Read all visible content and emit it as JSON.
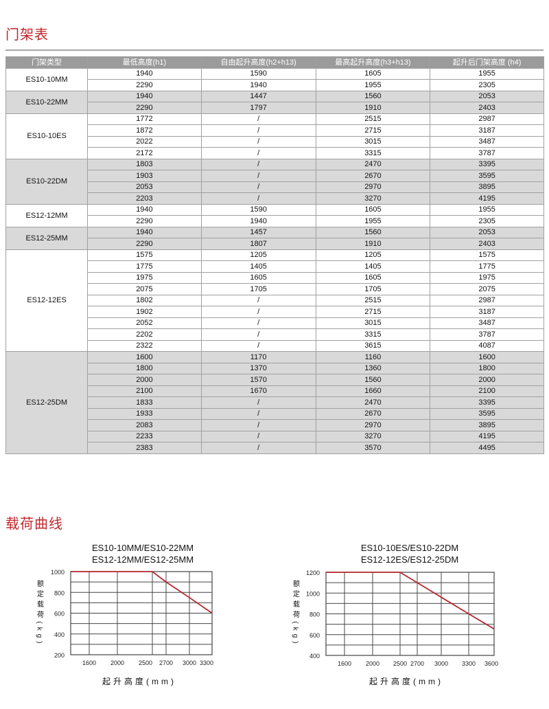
{
  "mast_table": {
    "title": "门架表",
    "headers": [
      "门架类型",
      "最低高度(h1)",
      "自由起升高度(h2+h13)",
      "最高起升高度(h3+h13)",
      "起升后门架高度 (h4)"
    ],
    "groups": [
      {
        "model": "ES10-10MM",
        "rows": [
          [
            "1940",
            "1590",
            "1605",
            "1955"
          ],
          [
            "2290",
            "1940",
            "1955",
            "2305"
          ]
        ]
      },
      {
        "model": "ES10-22MM",
        "rows": [
          [
            "1940",
            "1447",
            "1560",
            "2053"
          ],
          [
            "2290",
            "1797",
            "1910",
            "2403"
          ]
        ]
      },
      {
        "model": "ES10-10ES",
        "rows": [
          [
            "1772",
            "/",
            "2515",
            "2987"
          ],
          [
            "1872",
            "/",
            "2715",
            "3187"
          ],
          [
            "2022",
            "/",
            "3015",
            "3487"
          ],
          [
            "2172",
            "/",
            "3315",
            "3787"
          ]
        ]
      },
      {
        "model": "ES10-22DM",
        "rows": [
          [
            "1803",
            "/",
            "2470",
            "3395"
          ],
          [
            "1903",
            "/",
            "2670",
            "3595"
          ],
          [
            "2053",
            "/",
            "2970",
            "3895"
          ],
          [
            "2203",
            "/",
            "3270",
            "4195"
          ]
        ]
      },
      {
        "model": "ES12-12MM",
        "rows": [
          [
            "1940",
            "1590",
            "1605",
            "1955"
          ],
          [
            "2290",
            "1940",
            "1955",
            "2305"
          ]
        ]
      },
      {
        "model": "ES12-25MM",
        "rows": [
          [
            "1940",
            "1457",
            "1560",
            "2053"
          ],
          [
            "2290",
            "1807",
            "1910",
            "2403"
          ]
        ]
      },
      {
        "model": "ES12-12ES",
        "rows": [
          [
            "1575",
            "1205",
            "1205",
            "1575"
          ],
          [
            "1775",
            "1405",
            "1405",
            "1775"
          ],
          [
            "1975",
            "1605",
            "1605",
            "1975"
          ],
          [
            "2075",
            "1705",
            "1705",
            "2075"
          ],
          [
            "1802",
            "/",
            "2515",
            "2987"
          ],
          [
            "1902",
            "/",
            "2715",
            "3187"
          ],
          [
            "2052",
            "/",
            "3015",
            "3487"
          ],
          [
            "2202",
            "/",
            "3315",
            "3787"
          ],
          [
            "2322",
            "/",
            "3615",
            "4087"
          ]
        ]
      },
      {
        "model": "ES12-25DM",
        "rows": [
          [
            "1600",
            "1170",
            "1160",
            "1600"
          ],
          [
            "1800",
            "1370",
            "1360",
            "1800"
          ],
          [
            "2000",
            "1570",
            "1560",
            "2000"
          ],
          [
            "2100",
            "1670",
            "1660",
            "2100"
          ],
          [
            "1833",
            "/",
            "2470",
            "3395"
          ],
          [
            "1933",
            "/",
            "2670",
            "3595"
          ],
          [
            "2083",
            "/",
            "2970",
            "3895"
          ],
          [
            "2233",
            "/",
            "3270",
            "4195"
          ],
          [
            "2383",
            "/",
            "3570",
            "4495"
          ]
        ]
      }
    ]
  },
  "load_curves": {
    "title": "载荷曲线"
  },
  "chart_data": [
    {
      "type": "line",
      "title": [
        "ES10-10MM/ES10-22MM",
        "ES12-12MM/ES12-25MM"
      ],
      "xlabel": "起升高度(mm)",
      "ylabel": "额定载荷(kg)",
      "x_ticks": [
        "1600",
        "2000",
        "2500",
        "2700",
        "3000",
        "3300"
      ],
      "y_ticks": [
        "1000",
        "800",
        "600",
        "400",
        "200"
      ],
      "ylim": [
        200,
        1000
      ],
      "grid": true,
      "series": [
        {
          "color": "#b5282e",
          "points": [
            [
              2500,
              1000
            ],
            [
              2700,
              900
            ],
            [
              3000,
              750
            ],
            [
              3300,
              600
            ]
          ]
        }
      ]
    },
    {
      "type": "line",
      "title": [
        "ES10-10ES/ES10-22DM",
        "ES12-12ES/ES12-25DM"
      ],
      "xlabel": "起升高度(mm)",
      "ylabel": "额定载荷(kg)",
      "x_ticks": [
        "1600",
        "2000",
        "2500",
        "2700",
        "3000",
        "3300",
        "3600"
      ],
      "y_ticks": [
        "1200",
        "1000",
        "800",
        "600",
        "400"
      ],
      "ylim": [
        400,
        1200
      ],
      "grid": true,
      "series": [
        {
          "color": "#b5282e",
          "points": [
            [
              2500,
              1200
            ],
            [
              2700,
              1100
            ],
            [
              3000,
              960
            ],
            [
              3300,
              800
            ],
            [
              3600,
              655
            ]
          ]
        }
      ]
    }
  ]
}
